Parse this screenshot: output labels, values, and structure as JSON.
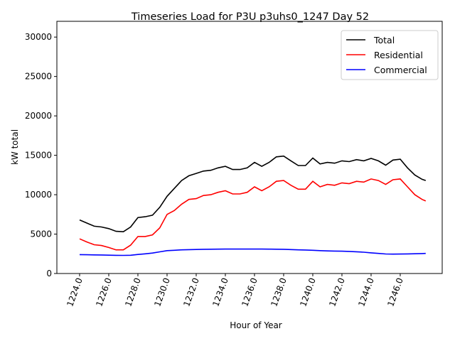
{
  "chart_data": {
    "type": "line",
    "title": "Timeseries Load for P3U p3uhs0_1247  Day 52",
    "xlabel": "Hour of Year",
    "ylabel": "kW total",
    "xlim": [
      1222.44,
      1248.88
    ],
    "ylim": [
      0,
      32000
    ],
    "xticks": [
      1224,
      1226,
      1228,
      1230,
      1232,
      1234,
      1236,
      1238,
      1240,
      1242,
      1244,
      1246
    ],
    "xtick_labels": [
      "1224.0",
      "1226.0",
      "1228.0",
      "1230.0",
      "1232.0",
      "1234.0",
      "1236.0",
      "1238.0",
      "1240.0",
      "1242.0",
      "1244.0",
      "1246.0"
    ],
    "yticks": [
      0,
      5000,
      10000,
      15000,
      20000,
      25000,
      30000
    ],
    "ytick_labels": [
      "0",
      "5000",
      "10000",
      "15000",
      "20000",
      "25000",
      "30000"
    ],
    "legend_position": "top-right",
    "x": [
      1224,
      1224.5,
      1225,
      1225.5,
      1226,
      1226.5,
      1227,
      1227.5,
      1228,
      1228.5,
      1229,
      1229.5,
      1230,
      1230.5,
      1231,
      1231.5,
      1232,
      1232.5,
      1233,
      1233.5,
      1234,
      1234.5,
      1235,
      1235.5,
      1236,
      1236.5,
      1237,
      1237.5,
      1238,
      1238.5,
      1239,
      1239.5,
      1240,
      1240.5,
      1241,
      1241.5,
      1242,
      1242.5,
      1243,
      1243.5,
      1244,
      1244.5,
      1245,
      1245.5,
      1246,
      1246.5,
      1247,
      1247.5,
      1247.75
    ],
    "series": [
      {
        "name": "Total",
        "color": "#000000",
        "values": [
          6800,
          6400,
          6000,
          5900,
          5700,
          5350,
          5300,
          5900,
          7100,
          7200,
          7400,
          8400,
          9800,
          10800,
          11800,
          12400,
          12700,
          13000,
          13100,
          13400,
          13600,
          13200,
          13200,
          13400,
          14100,
          13600,
          14100,
          14800,
          14900,
          14300,
          13700,
          13700,
          14650,
          13900,
          14100,
          14000,
          14300,
          14200,
          14450,
          14300,
          14600,
          14300,
          13750,
          14400,
          14500,
          13400,
          12500,
          11950,
          11800
        ]
      },
      {
        "name": "Residential",
        "color": "#ff0000",
        "values": [
          4400,
          4000,
          3650,
          3550,
          3300,
          3000,
          3000,
          3600,
          4700,
          4700,
          4900,
          5800,
          7500,
          8000,
          8800,
          9400,
          9500,
          9900,
          10000,
          10300,
          10500,
          10100,
          10100,
          10300,
          11000,
          10500,
          11000,
          11700,
          11800,
          11200,
          10700,
          10700,
          11700,
          11000,
          11300,
          11200,
          11500,
          11400,
          11700,
          11600,
          12000,
          11800,
          11300,
          11900,
          12000,
          11000,
          10000,
          9400,
          9200
        ]
      },
      {
        "name": "Commercial",
        "color": "#0000ff",
        "values": [
          2400,
          2380,
          2360,
          2350,
          2330,
          2310,
          2300,
          2320,
          2420,
          2500,
          2600,
          2750,
          2900,
          2950,
          3000,
          3030,
          3050,
          3070,
          3080,
          3090,
          3100,
          3100,
          3100,
          3100,
          3100,
          3100,
          3090,
          3080,
          3070,
          3040,
          3000,
          2980,
          2950,
          2900,
          2870,
          2850,
          2830,
          2800,
          2760,
          2700,
          2620,
          2550,
          2480,
          2460,
          2470,
          2490,
          2510,
          2530,
          2550
        ]
      }
    ]
  }
}
